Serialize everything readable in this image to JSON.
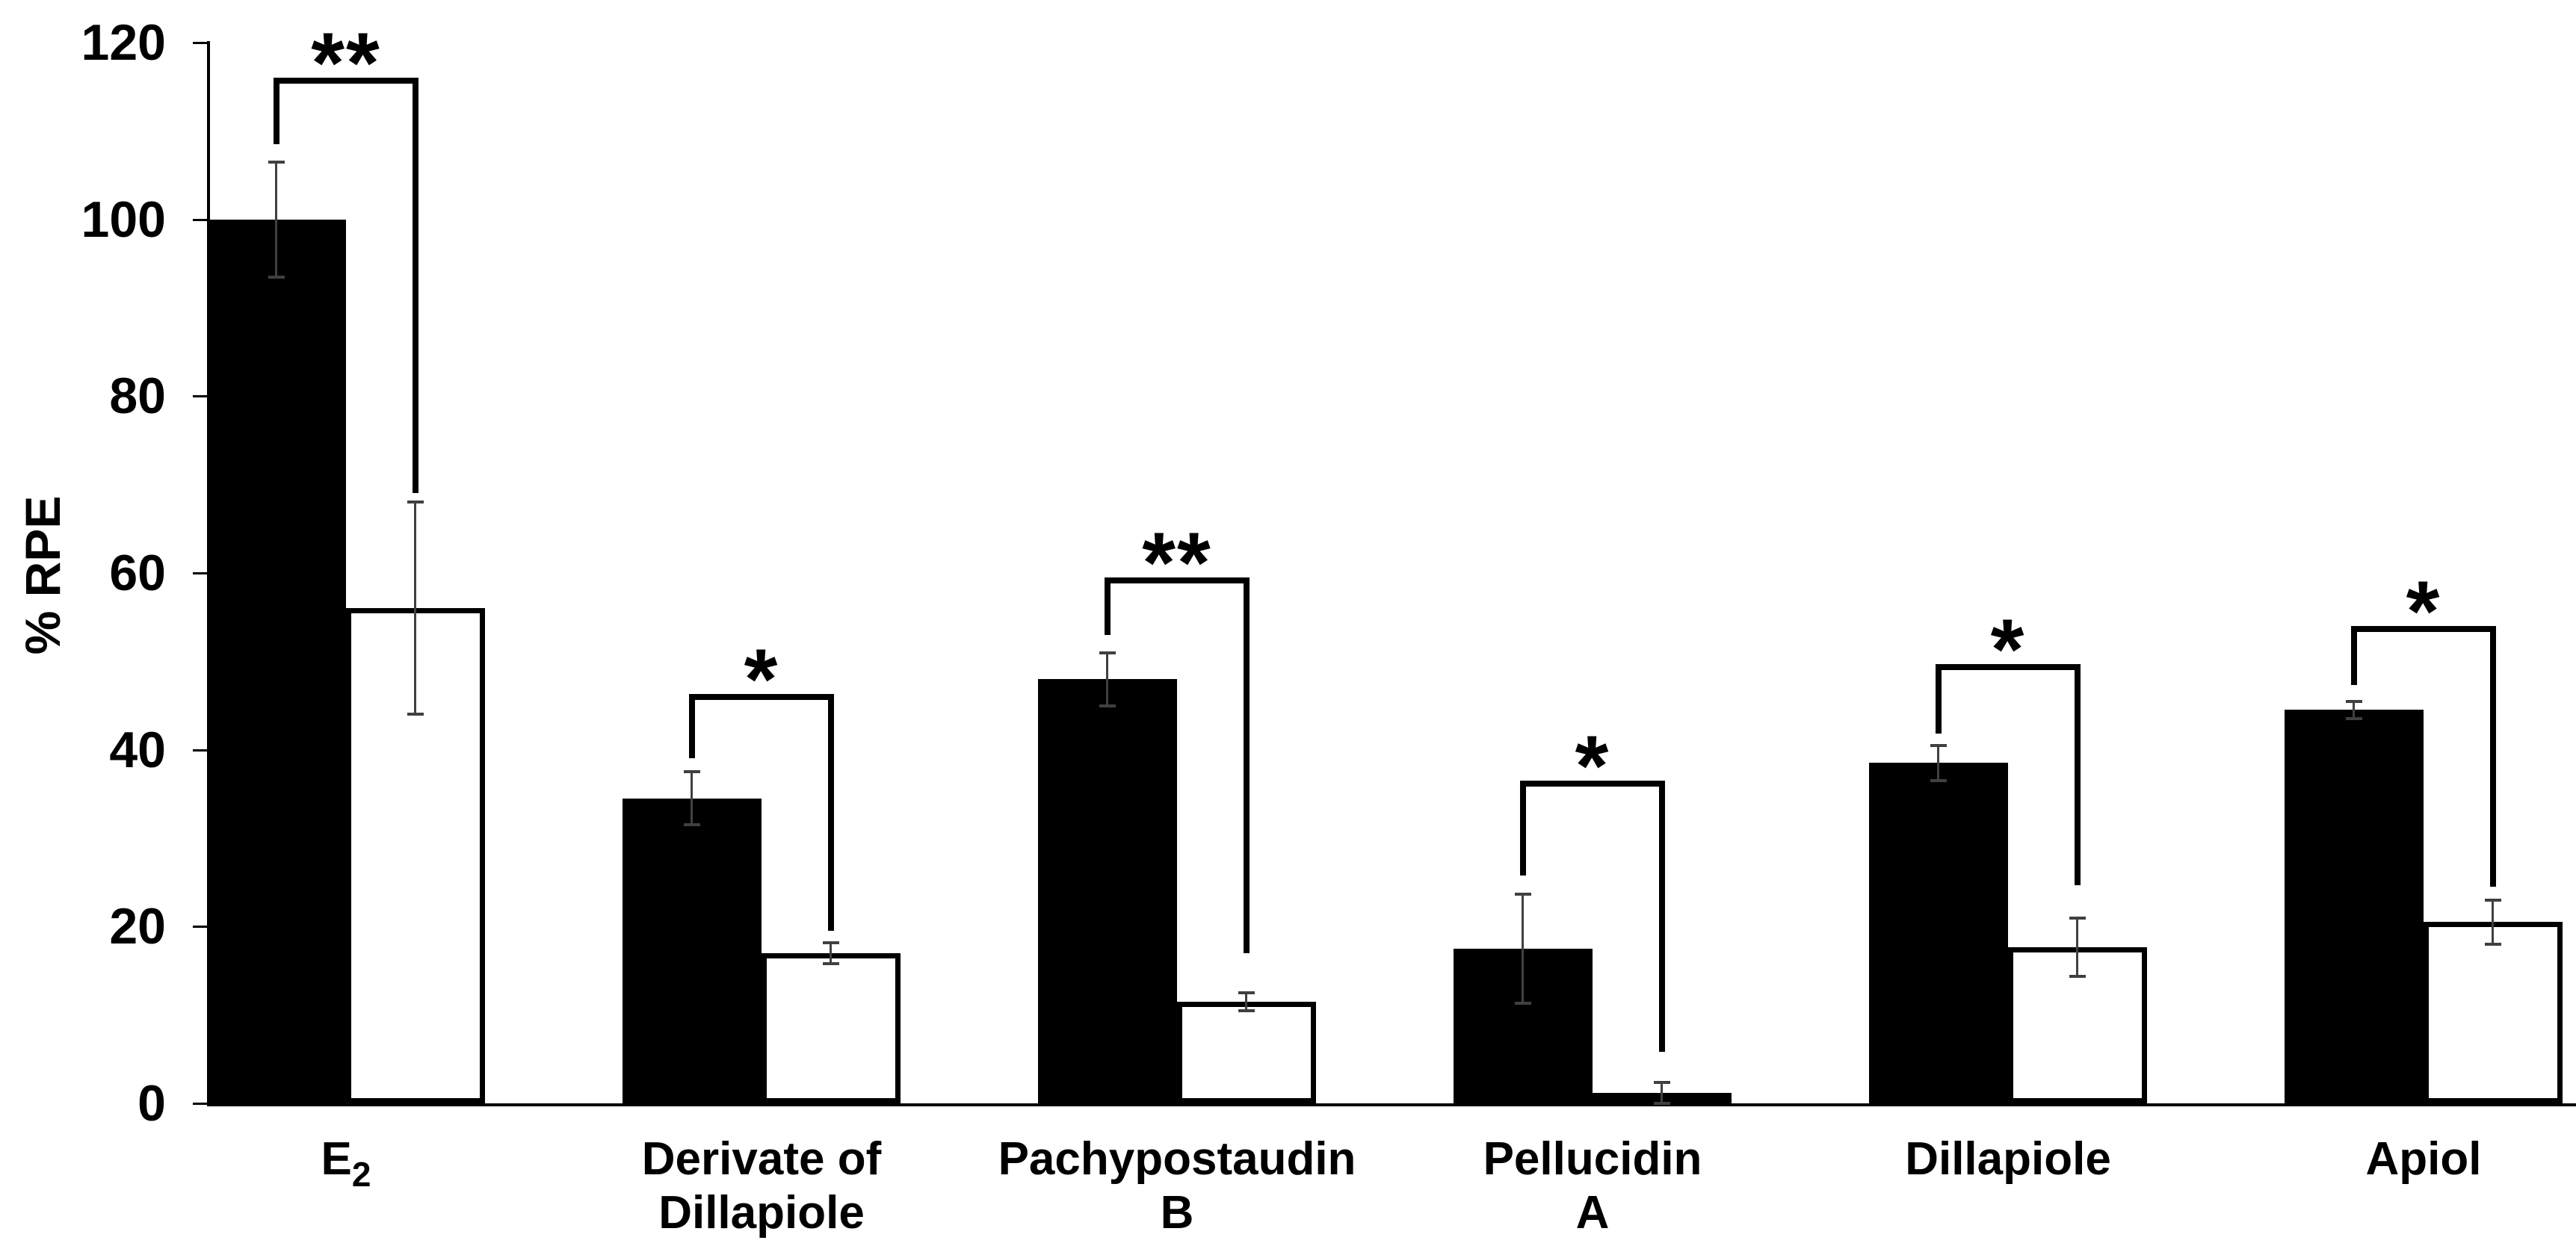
{
  "chart_data": {
    "type": "bar",
    "title": "",
    "xlabel": "",
    "ylabel": "% RPE",
    "ylim": [
      0,
      120
    ],
    "yticks": [
      0,
      20,
      40,
      60,
      80,
      100,
      120
    ],
    "grid": false,
    "legend": "none",
    "series": [
      {
        "name": "filled-black-bar",
        "fill": "#000000"
      },
      {
        "name": "open-white-bar",
        "fill": "#ffffff",
        "border": "#000000"
      }
    ],
    "categories": [
      {
        "label_lines": [
          [
            {
              "t": "E"
            },
            {
              "t": "2",
              "sub": true
            }
          ]
        ],
        "black": {
          "value": 100,
          "error": 6.5
        },
        "white": {
          "value": 56,
          "error": 12
        },
        "sig": "**",
        "bracket": {
          "top": 116,
          "left_bottom": 108.5,
          "right_bottom": 69
        }
      },
      {
        "label_lines": [
          [
            {
              "t": "Derivate of"
            }
          ],
          [
            {
              "t": "Dillapiole"
            }
          ]
        ],
        "black": {
          "value": 34.5,
          "error": 3
        },
        "white": {
          "value": 17,
          "error": 1.2
        },
        "sig": "*",
        "bracket": {
          "top": 46.3,
          "left_bottom": 39,
          "right_bottom": 19.5
        }
      },
      {
        "label_lines": [
          [
            {
              "t": "Pachypostaudin"
            }
          ],
          [
            {
              "t": "B"
            }
          ]
        ],
        "black": {
          "value": 48,
          "error": 3
        },
        "white": {
          "value": 11.5,
          "error": 1
        },
        "sig": "**",
        "bracket": {
          "top": 59.5,
          "left_bottom": 53,
          "right_bottom": 17
        }
      },
      {
        "label_lines": [
          [
            {
              "t": "Pellucidin"
            }
          ],
          [
            {
              "t": "A"
            }
          ]
        ],
        "black": {
          "value": 17.5,
          "error": 6.2
        },
        "white": {
          "value": 1.2,
          "error": 1.2
        },
        "sig": "*",
        "bracket": {
          "top": 36.5,
          "left_bottom": 25.8,
          "right_bottom": 5.8
        }
      },
      {
        "label_lines": [
          [
            {
              "t": "Dillapiole"
            }
          ]
        ],
        "black": {
          "value": 38.5,
          "error": 2
        },
        "white": {
          "value": 17.7,
          "error": 3.3
        },
        "sig": "*",
        "bracket": {
          "top": 49.7,
          "left_bottom": 41.8,
          "right_bottom": 24.7
        }
      },
      {
        "label_lines": [
          [
            {
              "t": "Apiol"
            }
          ]
        ],
        "black": {
          "value": 44.5,
          "error": 1
        },
        "white": {
          "value": 20.5,
          "error": 2.5
        },
        "sig": "*",
        "bracket": {
          "top": 54,
          "left_bottom": 47.3,
          "right_bottom": 24.5
        }
      }
    ]
  },
  "colors": {
    "background": "#ffffff",
    "bar_fill_black": "#000000",
    "bar_fill_white": "#ffffff",
    "bar_border": "#000000",
    "error_bar": "#404040",
    "axis": "#000000",
    "text": "#000000"
  }
}
